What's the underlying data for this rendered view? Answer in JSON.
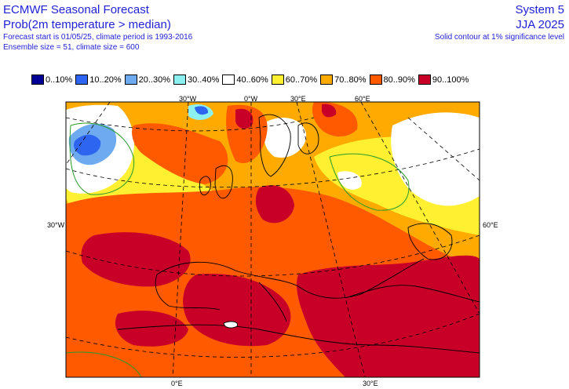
{
  "header": {
    "title": "ECMWF Seasonal Forecast",
    "subtitle": "Prob(2m temperature > median)",
    "line3": "Forecast start is 01/05/25, climate period is 1993-2016",
    "line4": "Ensemble size = 51, climate size = 600",
    "system": "System 5",
    "season": "JJA 2025",
    "note": "Solid contour at 1% significance level"
  },
  "legend": [
    {
      "label": "0..10%",
      "color": "#000096"
    },
    {
      "label": "10..20%",
      "color": "#2d64f0"
    },
    {
      "label": "20..30%",
      "color": "#6eaaf0"
    },
    {
      "label": "30..40%",
      "color": "#8cf0f0"
    },
    {
      "label": "40..60%",
      "color": "#ffffff"
    },
    {
      "label": "60..70%",
      "color": "#fff032"
    },
    {
      "label": "70..80%",
      "color": "#ffaa00"
    },
    {
      "label": "80..90%",
      "color": "#ff5a00"
    },
    {
      "label": "90..100%",
      "color": "#c80028"
    }
  ],
  "axis_labels": {
    "top": [
      "30°W",
      "0°W",
      "30°E",
      "60°E"
    ],
    "left": "30°W",
    "right": "60°E",
    "bottom": [
      "0°E",
      "30°E"
    ]
  },
  "map": {
    "projection": "lambert-conic",
    "region": "Europe"
  }
}
